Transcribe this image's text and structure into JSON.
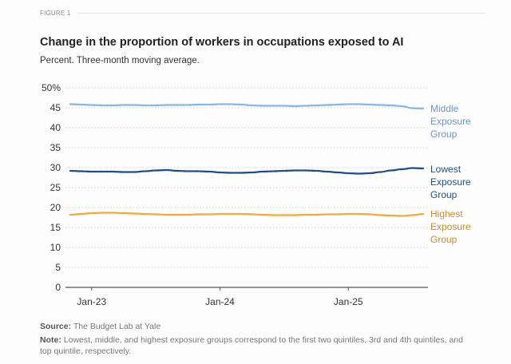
{
  "figure_label": "FIGURE 1",
  "footer": {
    "source_label": "Source:",
    "source_text": "The Budget Lab at Yale",
    "note_label": "Note:",
    "note_text": "Lowest, middle, and highest exposure groups correspond to the first two quintiles, 3rd and 4th quintiles, and top quintile, respectively."
  },
  "chart_data": {
    "type": "line",
    "title": "Change in the proportion of workers in occupations exposed to AI",
    "subtitle": "Percent. Three-month moving average.",
    "xlabel": "",
    "ylabel": "",
    "ylim": [
      0,
      50
    ],
    "yticks": [
      0,
      5,
      10,
      15,
      20,
      25,
      30,
      35,
      40,
      45,
      50
    ],
    "ytick_labels": [
      "0",
      "5",
      "10",
      "15",
      "20",
      "25",
      "30",
      "35",
      "40",
      "45",
      "50%"
    ],
    "grid": "horizontal dotted",
    "x": [
      "Nov-22",
      "Dec-22",
      "Jan-23",
      "Feb-23",
      "Mar-23",
      "Apr-23",
      "May-23",
      "Jun-23",
      "Jul-23",
      "Aug-23",
      "Sep-23",
      "Oct-23",
      "Nov-23",
      "Dec-23",
      "Jan-24",
      "Feb-24",
      "Mar-24",
      "Apr-24",
      "May-24",
      "Jun-24",
      "Jul-24",
      "Aug-24",
      "Sep-24",
      "Oct-24",
      "Nov-24",
      "Dec-24",
      "Jan-25",
      "Feb-25",
      "Mar-25",
      "Apr-25",
      "May-25",
      "Jun-25",
      "Jul-25",
      "Aug-25"
    ],
    "xticks": [
      "Jan-23",
      "Jan-24",
      "Jan-25"
    ],
    "series": [
      {
        "name": "Middle Exposure Group",
        "label_lines": [
          "Middle",
          "Exposure",
          "Group"
        ],
        "color": "#8ab6e6",
        "label_color": "#6b97c9",
        "values": [
          45.9,
          45.8,
          45.7,
          45.6,
          45.6,
          45.7,
          45.7,
          45.6,
          45.6,
          45.7,
          45.7,
          45.7,
          45.8,
          45.8,
          45.9,
          45.9,
          45.8,
          45.6,
          45.5,
          45.5,
          45.5,
          45.4,
          45.5,
          45.6,
          45.7,
          45.8,
          45.9,
          45.9,
          45.8,
          45.7,
          45.6,
          45.4,
          44.9,
          44.8
        ]
      },
      {
        "name": "Lowest Exposure Group",
        "label_lines": [
          "Lowest",
          "Exposure",
          "Group"
        ],
        "color": "#1f4e8c",
        "label_color": "#1f4e8c",
        "values": [
          29.2,
          29.1,
          29.0,
          29.0,
          29.0,
          28.9,
          28.9,
          29.1,
          29.3,
          29.4,
          29.2,
          29.1,
          29.1,
          29.0,
          28.8,
          28.7,
          28.7,
          28.8,
          29.0,
          29.1,
          29.2,
          29.3,
          29.3,
          29.2,
          29.0,
          28.8,
          28.6,
          28.5,
          28.6,
          28.9,
          29.3,
          29.6,
          29.9,
          29.8
        ]
      },
      {
        "name": "Highest Exposure Group",
        "label_lines": [
          "Highest",
          "Exposure",
          "Group"
        ],
        "color": "#f5a93b",
        "label_color": "#d08a2e",
        "values": [
          18.2,
          18.4,
          18.6,
          18.7,
          18.7,
          18.6,
          18.5,
          18.4,
          18.3,
          18.2,
          18.2,
          18.2,
          18.3,
          18.3,
          18.4,
          18.4,
          18.4,
          18.3,
          18.2,
          18.1,
          18.1,
          18.1,
          18.2,
          18.2,
          18.3,
          18.3,
          18.4,
          18.4,
          18.3,
          18.1,
          18.0,
          17.9,
          18.1,
          18.4
        ]
      }
    ],
    "legend": "direct labels at right end of each line"
  }
}
